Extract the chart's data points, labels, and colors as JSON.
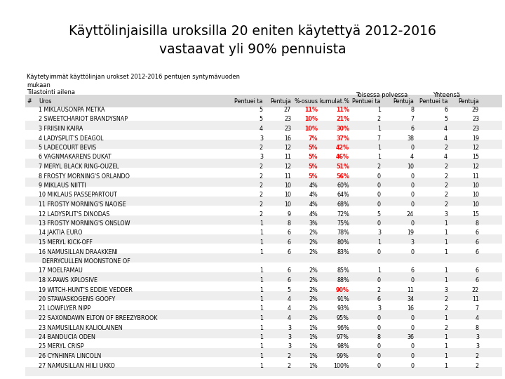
{
  "title": "Käyttölinjaisilla uroksilla 20 eniten käytettyä 2012-2016\nvastaavat yli 90% pennuista",
  "subtitle": "Käytetyimmät käyttölinjan urokset 2012-2016 pentujen syntymävuoden\nmukaan",
  "tilasto": "Tilastointi ailena",
  "header1_toisessa": "Toisessa polvessa",
  "header1_yhteensa": "Yhteensä",
  "header2": [
    "#",
    "Uros",
    "Pentuei ta",
    "Pentuja",
    "%-osuus",
    "kumulat.%",
    "Pentuei ta",
    "Pentuja",
    "Pentuei ta",
    "Pentuja"
  ],
  "rows": [
    [
      "",
      "1 MIKLAUSONPA METKA",
      "5",
      "27",
      "11%",
      "11%",
      "1",
      "8",
      "6",
      "29"
    ],
    [
      "",
      "2 SWEETCHARIOT BRANDYSNAP",
      "5",
      "23",
      "10%",
      "21%",
      "2",
      "7",
      "5",
      "23"
    ],
    [
      "",
      "3 FRIISIIN KAIRA",
      "4",
      "23",
      "10%",
      "30%",
      "1",
      "6",
      "4",
      "23"
    ],
    [
      "",
      "4 LADYSPLIT'S DEAGOL",
      "3",
      "16",
      "7%",
      "37%",
      "7",
      "38",
      "4",
      "19"
    ],
    [
      "",
      "5 LADECOURT BEVIS",
      "2",
      "12",
      "5%",
      "42%",
      "1",
      "0",
      "2",
      "12"
    ],
    [
      "",
      "6 VAGNMAKARENS DUKAT",
      "3",
      "11",
      "5%",
      "46%",
      "1",
      "4",
      "4",
      "15"
    ],
    [
      "",
      "7 MERYL BLACK RING-OUZEL",
      "2",
      "12",
      "5%",
      "51%",
      "2",
      "10",
      "2",
      "12"
    ],
    [
      "",
      "8 FROSTY MORNING'S ORLANDO",
      "2",
      "11",
      "5%",
      "56%",
      "0",
      "0",
      "2",
      "11"
    ],
    [
      "",
      "9 MIKLAUS NIITTI",
      "2",
      "10",
      "4%",
      "60%",
      "0",
      "0",
      "2",
      "10"
    ],
    [
      "",
      "10 MIKLAUS PASSEPARTOUT",
      "2",
      "10",
      "4%",
      "64%",
      "0",
      "0",
      "2",
      "10"
    ],
    [
      "",
      "11 FROSTY MORNING'S NAOISE",
      "2",
      "10",
      "4%",
      "68%",
      "0",
      "0",
      "2",
      "10"
    ],
    [
      "",
      "12 LADYSPLIT'S DINODAS",
      "2",
      "9",
      "4%",
      "72%",
      "5",
      "24",
      "3",
      "15"
    ],
    [
      "",
      "13 FROSTY MORNING'S ONSLOW",
      "1",
      "8",
      "3%",
      "75%",
      "0",
      "0",
      "1",
      "8"
    ],
    [
      "",
      "14 JAKTIA EURO",
      "1",
      "6",
      "2%",
      "78%",
      "3",
      "19",
      "1",
      "6"
    ],
    [
      "",
      "15 MERYL KICK-OFF",
      "1",
      "6",
      "2%",
      "80%",
      "1",
      "3",
      "1",
      "6"
    ],
    [
      "",
      "16 NAMUSILLAN DRAAKKENI",
      "1",
      "6",
      "2%",
      "83%",
      "0",
      "0",
      "1",
      "6"
    ],
    [
      "",
      "  DERRYCULLEN MOONSTONE OF",
      "",
      "",
      "",
      "",
      "",
      "",
      "",
      ""
    ],
    [
      "",
      "17 MOELFAMAU",
      "1",
      "6",
      "2%",
      "85%",
      "1",
      "6",
      "1",
      "6"
    ],
    [
      "",
      "18 X-PAWS XPLOSIVE",
      "1",
      "6",
      "2%",
      "88%",
      "0",
      "0",
      "1",
      "6"
    ],
    [
      "",
      "19 WITCH-HUNT'S EDDIE VEDDER",
      "1",
      "5",
      "2%",
      "90%",
      "2",
      "11",
      "3",
      "22"
    ],
    [
      "",
      "20 STAWASKOGENS GOOFY",
      "1",
      "4",
      "2%",
      "91%",
      "6",
      "34",
      "2",
      "11"
    ],
    [
      "",
      "21 LOWFLYER NIPP",
      "1",
      "4",
      "2%",
      "93%",
      "3",
      "16",
      "2",
      "7"
    ],
    [
      "",
      "22 SAXONDAWN ELTON OF BREEZYBROOK",
      "1",
      "4",
      "2%",
      "95%",
      "0",
      "0",
      "1",
      "4"
    ],
    [
      "",
      "23 NAMUSILLAN KALIOLAINEN",
      "1",
      "3",
      "1%",
      "96%",
      "0",
      "0",
      "2",
      "8"
    ],
    [
      "",
      "24 BANDUCIA ODEN",
      "1",
      "3",
      "1%",
      "97%",
      "8",
      "36",
      "1",
      "3"
    ],
    [
      "",
      "25 MERYL CRISP",
      "1",
      "3",
      "1%",
      "98%",
      "0",
      "0",
      "1",
      "3"
    ],
    [
      "",
      "26 CYNHINFA LINCOLN",
      "1",
      "2",
      "1%",
      "99%",
      "0",
      "0",
      "1",
      "2"
    ],
    [
      "",
      "27 NAMUSILLAN HIILI UKKO",
      "1",
      "2",
      "1%",
      "100%",
      "0",
      "0",
      "1",
      "2"
    ]
  ],
  "red_pct_rows": [
    0,
    1,
    2,
    3,
    4,
    5,
    6,
    7
  ],
  "red_kum_rows": [
    0,
    1,
    2,
    3,
    4,
    5,
    6,
    7,
    19
  ],
  "bg_color": "#ffffff",
  "header_bg": "#d9d9d9",
  "alt_row_bg": "#eeeeee"
}
